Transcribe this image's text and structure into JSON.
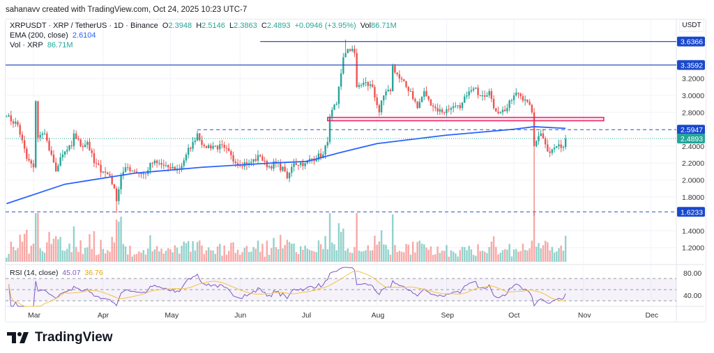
{
  "credit": "sahanavv created with TradingView.com, Oct 24, 2025 10:23 UTC-7",
  "legend": {
    "symbol": "XRPUSDT · XRP / TetherUS · 1D · Binance",
    "o_label": "O",
    "o": "2.3948",
    "h_label": "H",
    "h": "2.5146",
    "l_label": "L",
    "l": "2.3863",
    "c_label": "C",
    "c": "2.4893",
    "change": "+0.0946 (+3.95%)",
    "vol_label": "Vol",
    "vol": "86.71M",
    "ema_label": "EMA (200, close)",
    "ema": "2.6104",
    "volind_label": "Vol · XRP",
    "volind": "86.71M",
    "rsi_label": "RSI (14, close)",
    "rsi": "45.07",
    "rsi_ma": "36.76"
  },
  "currency": "USDT",
  "logo": "TradingView",
  "chart_data": {
    "type": "candlestick",
    "ylim": [
      1.0,
      3.75
    ],
    "price_ticks": [
      "3.2000",
      "3.0000",
      "2.8000",
      "2.4000",
      "2.2000",
      "2.0000",
      "1.8000",
      "1.4000",
      "1.2000"
    ],
    "rsi_ticks": [
      "80.00",
      "40.00"
    ],
    "x_ticks": [
      "Mar",
      "Apr",
      "May",
      "Jun",
      "Jul",
      "Aug",
      "Sep",
      "Oct",
      "Nov",
      "Dec"
    ],
    "x_tick_dates": [
      "2025-03-01",
      "2025-04-01",
      "2025-05-01",
      "2025-06-01",
      "2025-07-01",
      "2025-08-01",
      "2025-09-01",
      "2025-10-01",
      "2025-11-01",
      "2025-12-01"
    ],
    "closes": [
      [
        "2025-02-17",
        2.75
      ],
      [
        "2025-02-22",
        2.65
      ],
      [
        "2025-02-26",
        2.25
      ],
      [
        "2025-03-01",
        2.15
      ],
      [
        "2025-03-02",
        2.93
      ],
      [
        "2025-03-03",
        2.5
      ],
      [
        "2025-03-06",
        2.55
      ],
      [
        "2025-03-08",
        2.35
      ],
      [
        "2025-03-11",
        2.1
      ],
      [
        "2025-03-14",
        2.3
      ],
      [
        "2025-03-18",
        2.4
      ],
      [
        "2025-03-19",
        2.55
      ],
      [
        "2025-03-22",
        2.4
      ],
      [
        "2025-03-25",
        2.45
      ],
      [
        "2025-03-28",
        2.2
      ],
      [
        "2025-04-01",
        2.1
      ],
      [
        "2025-04-04",
        2.05
      ],
      [
        "2025-04-06",
        1.9
      ],
      [
        "2025-04-07",
        1.75
      ],
      [
        "2025-04-09",
        2.05
      ],
      [
        "2025-04-12",
        2.15
      ],
      [
        "2025-04-15",
        2.1
      ],
      [
        "2025-04-20",
        2.07
      ],
      [
        "2025-04-22",
        2.2
      ],
      [
        "2025-04-25",
        2.2
      ],
      [
        "2025-04-30",
        2.15
      ],
      [
        "2025-05-05",
        2.12
      ],
      [
        "2025-05-08",
        2.3
      ],
      [
        "2025-05-11",
        2.45
      ],
      [
        "2025-05-13",
        2.55
      ],
      [
        "2025-05-16",
        2.4
      ],
      [
        "2025-05-20",
        2.4
      ],
      [
        "2025-05-25",
        2.38
      ],
      [
        "2025-05-30",
        2.2
      ],
      [
        "2025-06-05",
        2.2
      ],
      [
        "2025-06-10",
        2.28
      ],
      [
        "2025-06-13",
        2.15
      ],
      [
        "2025-06-17",
        2.2
      ],
      [
        "2025-06-21",
        2.1
      ],
      [
        "2025-06-22",
        2.02
      ],
      [
        "2025-06-25",
        2.2
      ],
      [
        "2025-06-30",
        2.2
      ],
      [
        "2025-07-03",
        2.25
      ],
      [
        "2025-07-08",
        2.3
      ],
      [
        "2025-07-10",
        2.45
      ],
      [
        "2025-07-11",
        2.75
      ],
      [
        "2025-07-14",
        2.9
      ],
      [
        "2025-07-17",
        3.45
      ],
      [
        "2025-07-18",
        3.5
      ],
      [
        "2025-07-21",
        3.55
      ],
      [
        "2025-07-22",
        3.5
      ],
      [
        "2025-07-23",
        3.1
      ],
      [
        "2025-07-26",
        3.15
      ],
      [
        "2025-07-30",
        3.1
      ],
      [
        "2025-08-02",
        2.8
      ],
      [
        "2025-08-04",
        3.0
      ],
      [
        "2025-08-07",
        3.05
      ],
      [
        "2025-08-08",
        3.35
      ],
      [
        "2025-08-11",
        3.2
      ],
      [
        "2025-08-14",
        3.1
      ],
      [
        "2025-08-16",
        3.05
      ],
      [
        "2025-08-19",
        2.85
      ],
      [
        "2025-08-22",
        3.05
      ],
      [
        "2025-08-24",
        2.95
      ],
      [
        "2025-08-27",
        2.85
      ],
      [
        "2025-08-30",
        2.8
      ],
      [
        "2025-09-03",
        2.85
      ],
      [
        "2025-09-07",
        2.85
      ],
      [
        "2025-09-10",
        3.0
      ],
      [
        "2025-09-13",
        3.08
      ],
      [
        "2025-09-17",
        3.0
      ],
      [
        "2025-09-20",
        3.05
      ],
      [
        "2025-09-22",
        2.85
      ],
      [
        "2025-09-25",
        2.8
      ],
      [
        "2025-09-28",
        2.85
      ],
      [
        "2025-10-01",
        3.0
      ],
      [
        "2025-10-03",
        3.02
      ],
      [
        "2025-10-06",
        2.95
      ],
      [
        "2025-10-09",
        2.8
      ],
      [
        "2025-10-10",
        2.4
      ],
      [
        "2025-10-12",
        2.52
      ],
      [
        "2025-10-13",
        2.55
      ],
      [
        "2025-10-15",
        2.42
      ],
      [
        "2025-10-17",
        2.32
      ],
      [
        "2025-10-19",
        2.38
      ],
      [
        "2025-10-21",
        2.42
      ],
      [
        "2025-10-22",
        2.38
      ],
      [
        "2025-10-23",
        2.39
      ],
      [
        "2025-10-24",
        2.4893
      ]
    ],
    "ema200": [
      [
        "2025-02-17",
        1.72
      ],
      [
        "2025-03-15",
        1.95
      ],
      [
        "2025-04-15",
        2.08
      ],
      [
        "2025-05-15",
        2.15
      ],
      [
        "2025-06-15",
        2.2
      ],
      [
        "2025-07-01",
        2.22
      ],
      [
        "2025-07-15",
        2.32
      ],
      [
        "2025-08-01",
        2.43
      ],
      [
        "2025-09-01",
        2.53
      ],
      [
        "2025-10-01",
        2.6
      ],
      [
        "2025-10-10",
        2.63
      ],
      [
        "2025-10-24",
        2.61
      ]
    ],
    "wicks": [
      [
        "2025-04-07",
        1.61
      ],
      [
        "2025-10-10",
        1.58
      ],
      [
        "2025-07-18",
        3.66
      ]
    ],
    "levels": [
      {
        "price": 3.6366,
        "label": "3.6366",
        "style": "solid",
        "from": "2025-06-10"
      },
      {
        "price": 3.3592,
        "label": "3.3592",
        "style": "solid"
      },
      {
        "price": 2.5947,
        "label": "2.5947",
        "style": "dashed",
        "from": "2025-05-13"
      },
      {
        "price": 1.6233,
        "label": "1.6233",
        "style": "dashed"
      },
      {
        "price": 2.4893,
        "label": "2.4893",
        "style": "dotted",
        "last": true
      }
    ],
    "zone": {
      "top": 2.74,
      "bottom": 2.7,
      "from": "2025-07-10",
      "to": "2025-11-10",
      "color": "#e91e63"
    },
    "colors": {
      "up": "#26a69a",
      "down": "#ef5350",
      "ema": "#2962ff",
      "level": "#2a4fbf",
      "rsi": "#7e57c2",
      "rsi_ma": "#f5c242"
    }
  }
}
